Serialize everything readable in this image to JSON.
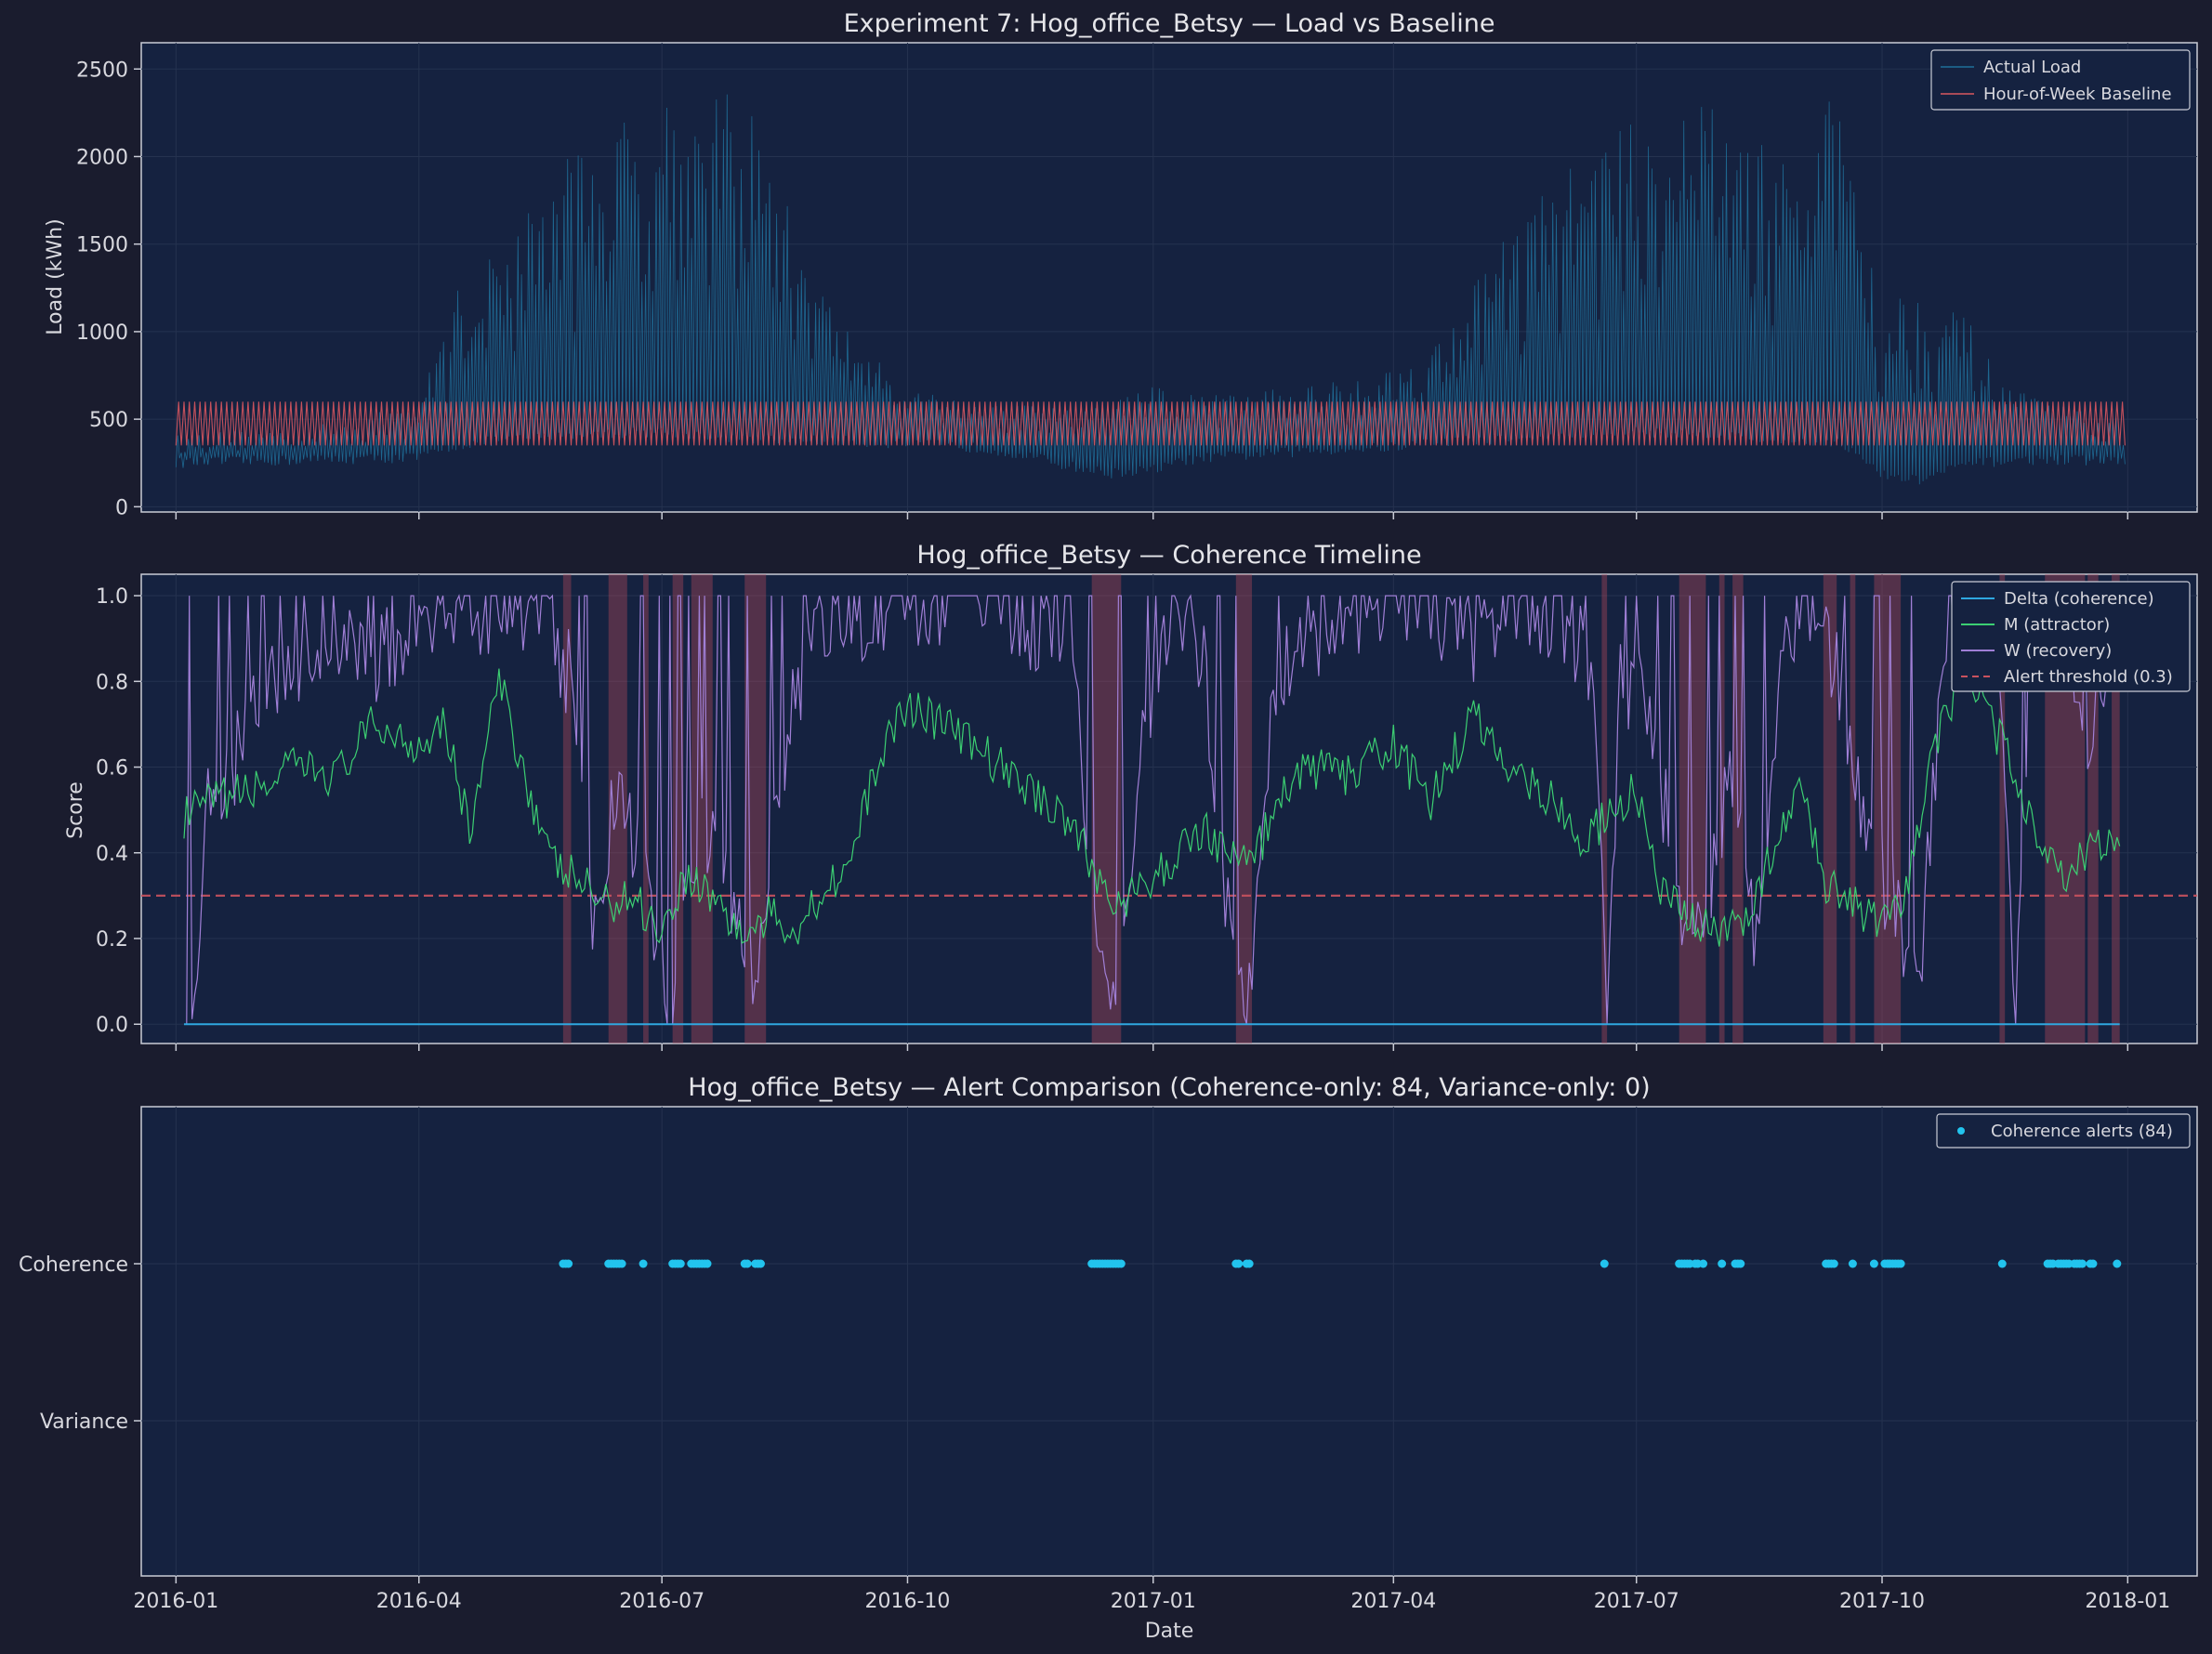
{
  "chart_data": [
    {
      "type": "line",
      "title": "Experiment 7: Hog_office_Betsy — Load vs Baseline",
      "xlabel": "",
      "ylabel": "Load (kWh)",
      "x_range": [
        "2015-12-19",
        "2018-01-27"
      ],
      "ylim": [
        -30,
        2650
      ],
      "y_ticks": [
        0,
        500,
        1000,
        1500,
        2000,
        2500
      ],
      "grid": true,
      "legend_position": "top-right",
      "series": [
        {
          "name": "Actual Load",
          "color": "#1f6f99",
          "x": [
            "2016-01-01",
            "2016-02-01",
            "2016-03-01",
            "2016-04-01",
            "2016-04-15",
            "2016-05-01",
            "2016-05-15",
            "2016-06-01",
            "2016-06-15",
            "2016-07-01",
            "2016-07-15",
            "2016-08-01",
            "2016-08-15",
            "2016-09-01",
            "2016-09-15",
            "2016-10-01",
            "2016-10-15",
            "2016-11-01",
            "2016-11-15",
            "2016-12-01",
            "2016-12-15",
            "2017-01-01",
            "2017-01-15",
            "2017-02-01",
            "2017-03-01",
            "2017-04-01",
            "2017-04-15",
            "2017-05-01",
            "2017-05-15",
            "2017-06-01",
            "2017-06-15",
            "2017-07-01",
            "2017-07-15",
            "2017-08-01",
            "2017-08-15",
            "2017-09-01",
            "2017-09-15",
            "2017-10-01",
            "2017-10-15",
            "2017-11-01",
            "2017-11-15",
            "2017-12-01",
            "2017-12-31"
          ],
          "low": [
            220,
            230,
            240,
            250,
            320,
            350,
            360,
            380,
            390,
            400,
            380,
            360,
            350,
            350,
            340,
            330,
            320,
            300,
            260,
            200,
            160,
            180,
            240,
            260,
            290,
            310,
            340,
            350,
            360,
            380,
            390,
            400,
            390,
            380,
            360,
            350,
            340,
            150,
            120,
            210,
            230,
            240,
            230
          ],
          "high": [
            420,
            440,
            480,
            600,
            1250,
            1500,
            1800,
            2100,
            2200,
            2450,
            2300,
            2400,
            1800,
            1200,
            900,
            700,
            650,
            600,
            580,
            560,
            600,
            700,
            650,
            650,
            700,
            800,
            900,
            1300,
            1600,
            1900,
            2100,
            2200,
            2350,
            2300,
            2100,
            1900,
            2500,
            1200,
            1300,
            1100,
            700,
            600,
            500
          ]
        },
        {
          "name": "Hour-of-Week Baseline",
          "color": "#d9575f",
          "x_start": "2016-01-01",
          "x_end": "2017-12-31",
          "low": 350,
          "high": 600
        }
      ]
    },
    {
      "type": "line",
      "title": "Hog_office_Betsy — Coherence Timeline",
      "xlabel": "",
      "ylabel": "Score",
      "x_range": [
        "2015-12-19",
        "2018-01-27"
      ],
      "ylim": [
        -0.045,
        1.05
      ],
      "y_ticks": [
        0.0,
        0.2,
        0.4,
        0.6,
        0.8,
        1.0
      ],
      "grid": true,
      "legend_position": "top-right",
      "series": [
        {
          "name": "Delta (coherence)",
          "color": "#2fa8e0",
          "x": [
            "2016-01-04",
            "2017-12-29"
          ],
          "y": [
            0.0,
            0.0
          ]
        },
        {
          "name": "M (attractor)",
          "color": "#3ccf72",
          "x": [
            "2016-01-04",
            "2016-01-15",
            "2016-02-01",
            "2016-02-15",
            "2016-03-01",
            "2016-03-15",
            "2016-04-01",
            "2016-04-10",
            "2016-04-20",
            "2016-05-01",
            "2016-05-10",
            "2016-05-20",
            "2016-06-01",
            "2016-06-10",
            "2016-06-20",
            "2016-07-01",
            "2016-07-10",
            "2016-07-20",
            "2016-08-01",
            "2016-08-10",
            "2016-08-20",
            "2016-09-01",
            "2016-09-10",
            "2016-09-20",
            "2016-10-01",
            "2016-10-15",
            "2016-11-01",
            "2016-11-15",
            "2016-12-01",
            "2016-12-10",
            "2016-12-20",
            "2017-01-01",
            "2017-01-10",
            "2017-01-20",
            "2017-02-01",
            "2017-02-10",
            "2017-02-20",
            "2017-03-01",
            "2017-03-15",
            "2017-04-01",
            "2017-04-15",
            "2017-05-01",
            "2017-05-15",
            "2017-06-01",
            "2017-06-10",
            "2017-06-20",
            "2017-07-01",
            "2017-07-10",
            "2017-07-20",
            "2017-08-01",
            "2017-08-10",
            "2017-08-20",
            "2017-09-01",
            "2017-09-10",
            "2017-09-20",
            "2017-10-01",
            "2017-10-10",
            "2017-10-20",
            "2017-11-01",
            "2017-11-10",
            "2017-11-20",
            "2017-12-01",
            "2017-12-10",
            "2017-12-20",
            "2017-12-29"
          ],
          "y": [
            0.48,
            0.52,
            0.55,
            0.6,
            0.58,
            0.7,
            0.65,
            0.72,
            0.45,
            0.8,
            0.6,
            0.38,
            0.33,
            0.28,
            0.3,
            0.22,
            0.35,
            0.3,
            0.2,
            0.25,
            0.22,
            0.33,
            0.38,
            0.62,
            0.75,
            0.7,
            0.62,
            0.55,
            0.48,
            0.35,
            0.28,
            0.33,
            0.4,
            0.46,
            0.38,
            0.42,
            0.55,
            0.6,
            0.58,
            0.65,
            0.52,
            0.72,
            0.6,
            0.52,
            0.42,
            0.48,
            0.55,
            0.3,
            0.25,
            0.2,
            0.25,
            0.38,
            0.55,
            0.33,
            0.28,
            0.22,
            0.3,
            0.65,
            0.82,
            0.72,
            0.58,
            0.4,
            0.35,
            0.42,
            0.4
          ]
        },
        {
          "name": "W (recovery)",
          "color": "#a07fd6",
          "x": [
            "2016-01-04",
            "2016-01-09",
            "2016-01-12",
            "2016-01-20",
            "2016-02-01",
            "2016-02-15",
            "2016-03-01",
            "2016-03-15",
            "2016-04-01",
            "2016-04-15",
            "2016-05-01",
            "2016-05-15",
            "2016-05-28",
            "2016-06-05",
            "2016-06-15",
            "2016-06-25",
            "2016-07-05",
            "2016-07-15",
            "2016-07-25",
            "2016-08-05",
            "2016-08-15",
            "2016-08-25",
            "2016-09-05",
            "2016-09-15",
            "2016-10-01",
            "2016-10-15",
            "2016-11-01",
            "2016-11-15",
            "2016-12-01",
            "2016-12-10",
            "2016-12-18",
            "2016-12-25",
            "2017-01-05",
            "2017-01-20",
            "2017-01-30",
            "2017-02-05",
            "2017-02-15",
            "2017-03-01",
            "2017-03-15",
            "2017-04-01",
            "2017-04-15",
            "2017-05-01",
            "2017-05-15",
            "2017-06-01",
            "2017-06-15",
            "2017-06-20",
            "2017-06-25",
            "2017-07-05",
            "2017-07-20",
            "2017-07-28",
            "2017-08-05",
            "2017-08-15",
            "2017-08-25",
            "2017-09-05",
            "2017-09-15",
            "2017-09-25",
            "2017-10-05",
            "2017-10-15",
            "2017-10-25",
            "2017-11-05",
            "2017-11-15",
            "2017-11-20",
            "2017-11-28",
            "2017-12-08",
            "2017-12-15",
            "2017-12-29"
          ],
          "y": [
            0.0,
            0.0,
            0.5,
            0.55,
            0.8,
            0.85,
            0.9,
            0.85,
            0.95,
            1.0,
            0.95,
            1.0,
            0.8,
            0.2,
            0.6,
            0.3,
            0.0,
            0.5,
            0.3,
            0.1,
            0.6,
            0.9,
            1.0,
            0.95,
            1.0,
            0.95,
            1.0,
            0.9,
            0.95,
            0.3,
            0.0,
            0.5,
            0.95,
            0.85,
            0.2,
            0.0,
            0.8,
            0.9,
            0.95,
            1.0,
            0.95,
            0.9,
            1.0,
            0.95,
            0.85,
            0.0,
            0.8,
            0.75,
            0.2,
            0.3,
            0.6,
            0.2,
            0.9,
            1.0,
            0.8,
            0.4,
            0.3,
            0.1,
            0.9,
            1.0,
            0.8,
            0.0,
            1.0,
            0.9,
            0.6,
            0.9
          ]
        },
        {
          "name": "Alert threshold (0.3)",
          "color": "#c9525e",
          "y_const": 0.3
        }
      ],
      "alert_bands": [
        [
          "2016-05-25",
          "2016-05-28"
        ],
        [
          "2016-06-11",
          "2016-06-18"
        ],
        [
          "2016-06-24",
          "2016-06-26"
        ],
        [
          "2016-07-05",
          "2016-07-09"
        ],
        [
          "2016-07-12",
          "2016-07-20"
        ],
        [
          "2016-08-01",
          "2016-08-09"
        ],
        [
          "2016-12-09",
          "2016-12-20"
        ],
        [
          "2017-02-01",
          "2017-02-07"
        ],
        [
          "2017-06-18",
          "2017-06-20"
        ],
        [
          "2017-07-17",
          "2017-07-27"
        ],
        [
          "2017-08-01",
          "2017-08-03"
        ],
        [
          "2017-08-06",
          "2017-08-10"
        ],
        [
          "2017-09-09",
          "2017-09-14"
        ],
        [
          "2017-09-19",
          "2017-09-21"
        ],
        [
          "2017-09-28",
          "2017-10-08"
        ],
        [
          "2017-11-14",
          "2017-11-16"
        ],
        [
          "2017-12-01",
          "2017-12-16"
        ],
        [
          "2017-12-17",
          "2017-12-21"
        ],
        [
          "2017-12-26",
          "2017-12-29"
        ]
      ]
    },
    {
      "type": "scatter",
      "title": "Hog_office_Betsy — Alert Comparison (Coherence-only: 84, Variance-only: 0)",
      "xlabel": "Date",
      "ylabel": "",
      "x_range": [
        "2015-12-19",
        "2018-01-27"
      ],
      "categories": [
        "Variance",
        "Coherence"
      ],
      "x_ticks": [
        "2016-01",
        "2016-04",
        "2016-07",
        "2016-10",
        "2017-01",
        "2017-04",
        "2017-07",
        "2017-10",
        "2018-01"
      ],
      "grid": true,
      "legend_position": "top-right",
      "series": [
        {
          "name": "Coherence alerts (84)",
          "color": "#22c4ee",
          "category": "Coherence",
          "x": [
            "2016-05-25",
            "2016-05-26",
            "2016-05-27",
            "2016-06-11",
            "2016-06-12",
            "2016-06-13",
            "2016-06-14",
            "2016-06-15",
            "2016-06-16",
            "2016-06-24",
            "2016-07-05",
            "2016-07-06",
            "2016-07-07",
            "2016-07-08",
            "2016-07-12",
            "2016-07-13",
            "2016-07-14",
            "2016-07-15",
            "2016-07-16",
            "2016-07-17",
            "2016-07-18",
            "2016-08-01",
            "2016-08-02",
            "2016-08-05",
            "2016-08-06",
            "2016-08-07",
            "2016-12-09",
            "2016-12-10",
            "2016-12-11",
            "2016-12-12",
            "2016-12-13",
            "2016-12-14",
            "2016-12-15",
            "2016-12-16",
            "2016-12-17",
            "2016-12-18",
            "2016-12-19",
            "2016-12-20",
            "2017-02-01",
            "2017-02-02",
            "2017-02-05",
            "2017-02-06",
            "2017-06-19",
            "2017-07-17",
            "2017-07-18",
            "2017-07-19",
            "2017-07-20",
            "2017-07-21",
            "2017-07-23",
            "2017-07-24",
            "2017-07-26",
            "2017-08-02",
            "2017-08-07",
            "2017-08-08",
            "2017-08-09",
            "2017-09-10",
            "2017-09-11",
            "2017-09-12",
            "2017-09-13",
            "2017-09-20",
            "2017-09-28",
            "2017-10-02",
            "2017-10-03",
            "2017-10-04",
            "2017-10-05",
            "2017-10-06",
            "2017-10-07",
            "2017-10-08",
            "2017-11-15",
            "2017-12-02",
            "2017-12-03",
            "2017-12-04",
            "2017-12-06",
            "2017-12-07",
            "2017-12-08",
            "2017-12-09",
            "2017-12-10",
            "2017-12-12",
            "2017-12-13",
            "2017-12-14",
            "2017-12-15",
            "2017-12-18",
            "2017-12-19",
            "2017-12-28"
          ]
        }
      ]
    }
  ]
}
